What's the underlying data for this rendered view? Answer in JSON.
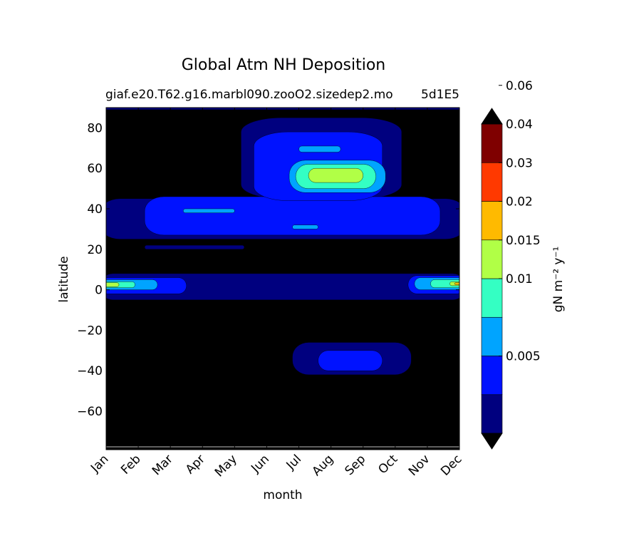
{
  "chart_data": {
    "type": "heatmap",
    "subtype": "filled-contour",
    "title": "Global Atm NH Deposition",
    "subtitle": "giaf.e20.T62.g16.marbl090.zooO2.sizedep2.mo5d1E5",
    "subtitle_left": "giaf.e20.T62.g16.marbl090.zooO2.sizedep2.mo",
    "subtitle_right": "5d1E5",
    "xlabel": "month",
    "ylabel": "latitude",
    "x_categories": [
      "Jan",
      "Feb",
      "Mar",
      "Apr",
      "May",
      "Jun",
      "Jul",
      "Aug",
      "Sep",
      "Oct",
      "Nov",
      "Dec"
    ],
    "xlim": [
      0,
      11
    ],
    "ylim": [
      -79,
      90
    ],
    "y_ticks": [
      80,
      60,
      40,
      20,
      0,
      -20,
      -40,
      -60
    ],
    "y_tick_labels": [
      "80",
      "60",
      "40",
      "20",
      "0",
      "−20",
      "−40",
      "−60"
    ],
    "colorbar": {
      "label": "gN m⁻² y⁻¹",
      "levels": [
        0,
        0.0025,
        0.005,
        0.0075,
        0.01,
        0.015,
        0.02,
        0.03,
        0.04,
        0.06,
        0.07
      ],
      "colors": [
        "#00007f",
        "#0012ff",
        "#00a4ff",
        "#34ffc3",
        "#b1ff46",
        "#ffba00",
        "#ff3900",
        "#7f0000"
      ],
      "below_color": "#000000",
      "above_color": "#000000",
      "ticks": [
        0.005,
        0.01,
        0.015,
        0.02,
        0.03,
        0.04,
        0.06
      ],
      "tick_labels": [
        "0.005",
        "0.01",
        "0.015",
        "0.02",
        "0.03",
        "0.04",
        "0.06"
      ],
      "extend": "both"
    },
    "contour_regions": [
      {
        "level": 0,
        "x": [
          -0.2,
          11.2
        ],
        "y": [
          89,
          90
        ]
      },
      {
        "level": 0,
        "x": [
          -0.2,
          11.2
        ],
        "y": [
          25,
          45
        ]
      },
      {
        "level": 0,
        "x": [
          4.2,
          9.2
        ],
        "y": [
          45,
          85
        ]
      },
      {
        "level": 0,
        "x": [
          -0.2,
          11.2
        ],
        "y": [
          -5,
          8
        ]
      },
      {
        "level": 0,
        "x": [
          5.8,
          9.5
        ],
        "y": [
          -42,
          -26
        ]
      },
      {
        "level": 0,
        "x": [
          1.2,
          4.3
        ],
        "y": [
          20,
          22
        ]
      },
      {
        "level": 1,
        "x": [
          1.2,
          10.4
        ],
        "y": [
          27,
          46
        ]
      },
      {
        "level": 1,
        "x": [
          4.6,
          8.6
        ],
        "y": [
          44,
          78
        ]
      },
      {
        "level": 1,
        "x": [
          -0.2,
          2.5
        ],
        "y": [
          -2,
          6
        ]
      },
      {
        "level": 1,
        "x": [
          9.4,
          11.2
        ],
        "y": [
          -2,
          7
        ]
      },
      {
        "level": 1,
        "x": [
          6.6,
          8.6
        ],
        "y": [
          -40,
          -30
        ]
      },
      {
        "level": 2,
        "x": [
          2.4,
          4.0
        ],
        "y": [
          38,
          40
        ]
      },
      {
        "level": 2,
        "x": [
          5.7,
          8.7
        ],
        "y": [
          48,
          64
        ]
      },
      {
        "level": 2,
        "x": [
          5.8,
          6.6
        ],
        "y": [
          30,
          32
        ]
      },
      {
        "level": 2,
        "x": [
          6.0,
          7.3
        ],
        "y": [
          68,
          71
        ]
      },
      {
        "level": 2,
        "x": [
          -0.2,
          1.6
        ],
        "y": [
          0,
          5
        ]
      },
      {
        "level": 2,
        "x": [
          9.6,
          11.2
        ],
        "y": [
          0,
          6
        ]
      },
      {
        "level": 3,
        "x": [
          5.9,
          8.4
        ],
        "y": [
          50,
          62
        ]
      },
      {
        "level": 3,
        "x": [
          -0.2,
          0.9
        ],
        "y": [
          1,
          4
        ]
      },
      {
        "level": 3,
        "x": [
          10.1,
          11.2
        ],
        "y": [
          1,
          5
        ]
      },
      {
        "level": 4,
        "x": [
          6.3,
          8.0
        ],
        "y": [
          53,
          60
        ]
      },
      {
        "level": 4,
        "x": [
          -0.2,
          0.4
        ],
        "y": [
          1.5,
          3.5
        ]
      },
      {
        "level": 4,
        "x": [
          10.7,
          11.2
        ],
        "y": [
          2,
          4
        ]
      },
      {
        "level": 5,
        "x": [
          10.85,
          11.2
        ],
        "y": [
          2.5,
          3.5
        ]
      }
    ]
  }
}
